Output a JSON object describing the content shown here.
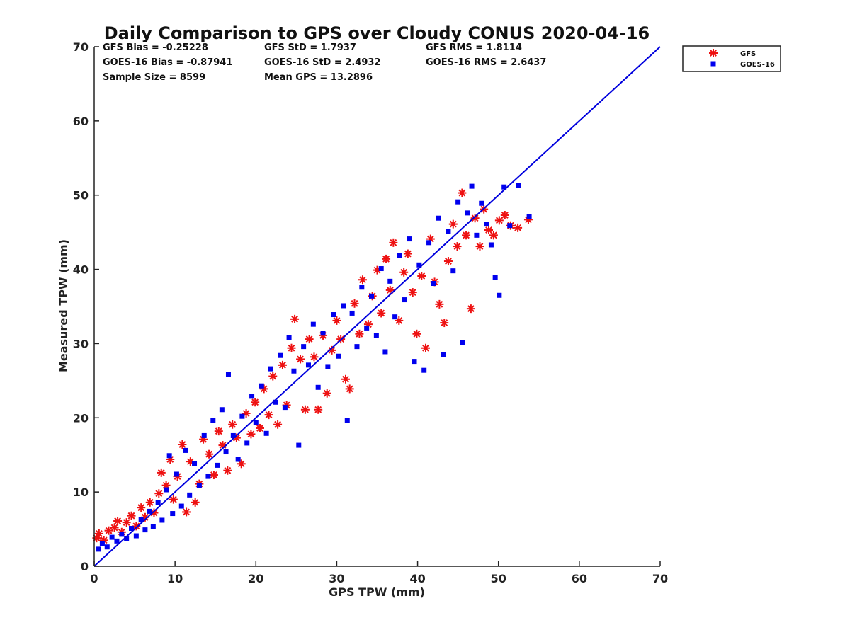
{
  "chart_data": {
    "type": "scatter",
    "title": "Daily Comparison to GPS over Cloudy CONUS 2020-04-16",
    "xlabel": "GPS TPW (mm)",
    "ylabel": "Measured TPW (mm)",
    "xlim": [
      0,
      70
    ],
    "ylim": [
      0,
      70
    ],
    "xticks": [
      "0",
      "10",
      "20",
      "30",
      "40",
      "50",
      "60",
      "70"
    ],
    "yticks": [
      "0",
      "10",
      "20",
      "30",
      "40",
      "50",
      "60",
      "70"
    ],
    "grid": false,
    "legend_position": "outside-top-right",
    "reference_line": {
      "x": [
        0,
        70
      ],
      "y": [
        0,
        70
      ],
      "color": "#0000dd"
    },
    "stats": [
      [
        "GFS Bias = -0.25228",
        "GFS StD = 1.7937",
        "GFS RMS = 1.8114"
      ],
      [
        "GOES-16 Bias = -0.87941",
        "GOES-16 StD = 2.4932",
        "GOES-16 RMS = 2.6437"
      ],
      [
        "Sample Size = 8599",
        "Mean GPS = 13.2896",
        ""
      ]
    ],
    "series": [
      {
        "name": "GFS",
        "marker": "asterisk",
        "color": "#ee1111",
        "points": [
          [
            0.3,
            3.8
          ],
          [
            0.6,
            4.4
          ],
          [
            1.2,
            3.5
          ],
          [
            1.8,
            4.8
          ],
          [
            2.5,
            5.2
          ],
          [
            2.9,
            6.1
          ],
          [
            3.4,
            4.6
          ],
          [
            4.0,
            5.9
          ],
          [
            4.6,
            6.8
          ],
          [
            5.2,
            5.4
          ],
          [
            5.8,
            7.9
          ],
          [
            6.3,
            6.6
          ],
          [
            6.9,
            8.6
          ],
          [
            7.4,
            7.2
          ],
          [
            8.0,
            9.8
          ],
          [
            8.3,
            12.6
          ],
          [
            8.9,
            10.9
          ],
          [
            9.4,
            14.4
          ],
          [
            9.8,
            9.0
          ],
          [
            10.3,
            12.1
          ],
          [
            10.9,
            16.4
          ],
          [
            11.4,
            7.3
          ],
          [
            11.9,
            14.1
          ],
          [
            12.5,
            8.6
          ],
          [
            13.0,
            11.1
          ],
          [
            13.5,
            17.1
          ],
          [
            14.2,
            15.1
          ],
          [
            14.8,
            12.3
          ],
          [
            15.4,
            18.2
          ],
          [
            15.9,
            16.3
          ],
          [
            16.5,
            12.9
          ],
          [
            17.1,
            19.1
          ],
          [
            17.6,
            17.3
          ],
          [
            18.2,
            13.8
          ],
          [
            18.8,
            20.6
          ],
          [
            19.4,
            17.8
          ],
          [
            19.9,
            22.1
          ],
          [
            20.5,
            18.6
          ],
          [
            21.0,
            23.9
          ],
          [
            21.6,
            20.4
          ],
          [
            22.1,
            25.6
          ],
          [
            22.7,
            19.1
          ],
          [
            23.3,
            27.1
          ],
          [
            23.8,
            21.7
          ],
          [
            24.4,
            29.4
          ],
          [
            24.8,
            33.3
          ],
          [
            25.5,
            27.9
          ],
          [
            26.1,
            21.1
          ],
          [
            26.6,
            30.6
          ],
          [
            27.2,
            28.2
          ],
          [
            27.7,
            21.1
          ],
          [
            28.3,
            31.1
          ],
          [
            28.8,
            23.3
          ],
          [
            29.4,
            29.1
          ],
          [
            30.0,
            33.1
          ],
          [
            30.5,
            30.6
          ],
          [
            31.1,
            25.2
          ],
          [
            31.6,
            23.9
          ],
          [
            32.2,
            35.4
          ],
          [
            32.8,
            31.3
          ],
          [
            33.2,
            38.6
          ],
          [
            33.9,
            32.6
          ],
          [
            34.4,
            36.4
          ],
          [
            35.0,
            39.9
          ],
          [
            35.5,
            34.1
          ],
          [
            36.1,
            41.4
          ],
          [
            36.6,
            37.2
          ],
          [
            37.0,
            43.6
          ],
          [
            37.7,
            33.1
          ],
          [
            38.3,
            39.6
          ],
          [
            38.8,
            42.1
          ],
          [
            39.4,
            36.9
          ],
          [
            39.9,
            31.3
          ],
          [
            40.5,
            39.1
          ],
          [
            41.0,
            29.4
          ],
          [
            41.6,
            44.1
          ],
          [
            42.1,
            38.3
          ],
          [
            42.7,
            35.3
          ],
          [
            43.3,
            32.8
          ],
          [
            43.8,
            41.1
          ],
          [
            44.4,
            46.1
          ],
          [
            44.9,
            43.1
          ],
          [
            45.5,
            50.3
          ],
          [
            46.0,
            44.6
          ],
          [
            46.6,
            34.7
          ],
          [
            47.1,
            46.9
          ],
          [
            47.7,
            43.1
          ],
          [
            48.2,
            48.1
          ],
          [
            48.8,
            45.3
          ],
          [
            49.4,
            44.6
          ],
          [
            50.1,
            46.6
          ],
          [
            50.8,
            47.3
          ],
          [
            51.5,
            45.9
          ],
          [
            52.4,
            45.6
          ],
          [
            53.7,
            46.7
          ]
        ]
      },
      {
        "name": "GOES-16",
        "marker": "square",
        "color": "#0000ee",
        "points": [
          [
            0.5,
            2.3
          ],
          [
            1.0,
            3.1
          ],
          [
            1.6,
            2.6
          ],
          [
            2.2,
            3.9
          ],
          [
            2.8,
            3.4
          ],
          [
            3.4,
            4.3
          ],
          [
            4.0,
            3.7
          ],
          [
            4.6,
            5.1
          ],
          [
            5.2,
            4.1
          ],
          [
            5.8,
            6.3
          ],
          [
            6.3,
            4.9
          ],
          [
            6.8,
            7.4
          ],
          [
            7.3,
            5.3
          ],
          [
            7.9,
            8.6
          ],
          [
            8.4,
            6.2
          ],
          [
            8.9,
            10.3
          ],
          [
            9.3,
            14.9
          ],
          [
            9.7,
            7.1
          ],
          [
            10.2,
            12.4
          ],
          [
            10.8,
            8.1
          ],
          [
            11.3,
            15.6
          ],
          [
            11.8,
            9.6
          ],
          [
            12.4,
            13.8
          ],
          [
            13.0,
            10.9
          ],
          [
            13.6,
            17.6
          ],
          [
            14.1,
            12.1
          ],
          [
            14.7,
            19.6
          ],
          [
            15.2,
            13.6
          ],
          [
            15.8,
            21.1
          ],
          [
            16.3,
            15.4
          ],
          [
            16.6,
            25.8
          ],
          [
            17.2,
            17.6
          ],
          [
            17.8,
            14.4
          ],
          [
            18.3,
            20.2
          ],
          [
            18.9,
            16.6
          ],
          [
            19.5,
            22.9
          ],
          [
            20.0,
            19.4
          ],
          [
            20.7,
            24.3
          ],
          [
            21.3,
            17.9
          ],
          [
            21.8,
            26.6
          ],
          [
            22.4,
            22.1
          ],
          [
            23.0,
            28.4
          ],
          [
            23.6,
            21.4
          ],
          [
            24.1,
            30.8
          ],
          [
            24.7,
            26.3
          ],
          [
            25.3,
            16.3
          ],
          [
            25.9,
            29.6
          ],
          [
            26.5,
            27.1
          ],
          [
            27.1,
            32.6
          ],
          [
            27.7,
            24.1
          ],
          [
            28.3,
            31.4
          ],
          [
            28.9,
            26.9
          ],
          [
            29.6,
            33.9
          ],
          [
            30.2,
            28.3
          ],
          [
            30.8,
            35.1
          ],
          [
            31.3,
            19.6
          ],
          [
            31.9,
            34.1
          ],
          [
            32.5,
            29.6
          ],
          [
            33.1,
            37.6
          ],
          [
            33.7,
            32.1
          ],
          [
            34.3,
            36.4
          ],
          [
            34.9,
            31.1
          ],
          [
            35.5,
            40.1
          ],
          [
            36.0,
            28.9
          ],
          [
            36.6,
            38.4
          ],
          [
            37.2,
            33.6
          ],
          [
            37.8,
            41.9
          ],
          [
            38.4,
            35.9
          ],
          [
            39.0,
            44.1
          ],
          [
            39.6,
            27.6
          ],
          [
            40.2,
            40.6
          ],
          [
            40.8,
            26.4
          ],
          [
            41.4,
            43.6
          ],
          [
            42.0,
            38.1
          ],
          [
            42.6,
            46.9
          ],
          [
            43.2,
            28.5
          ],
          [
            43.8,
            45.1
          ],
          [
            44.4,
            39.8
          ],
          [
            45.0,
            49.1
          ],
          [
            45.6,
            30.1
          ],
          [
            46.2,
            47.6
          ],
          [
            46.7,
            51.2
          ],
          [
            47.3,
            44.6
          ],
          [
            47.9,
            48.9
          ],
          [
            48.5,
            46.1
          ],
          [
            49.1,
            43.3
          ],
          [
            49.6,
            38.9
          ],
          [
            50.1,
            36.5
          ],
          [
            50.7,
            51.1
          ],
          [
            51.4,
            45.9
          ],
          [
            52.5,
            51.3
          ],
          [
            53.8,
            47.1
          ]
        ]
      }
    ]
  }
}
